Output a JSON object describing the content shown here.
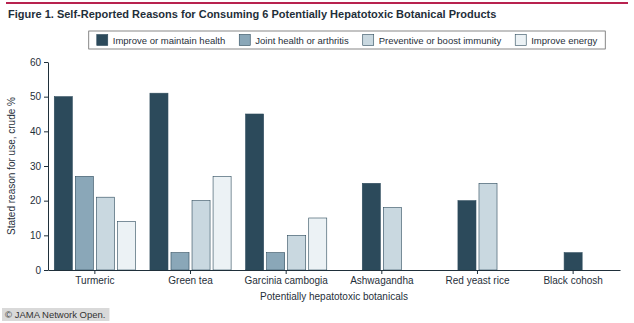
{
  "chart_data": {
    "type": "bar",
    "title": "Figure 1. Self-Reported Reasons for Consuming 6 Potentially Hepatotoxic Botanical Products",
    "x_label": "Potentially hepatotoxic botanicals",
    "y_label": "Stated reason for use, crude %",
    "categories": [
      "Turmeric",
      "Green tea",
      "Garcinia cambogia",
      "Ashwagandha",
      "Red yeast rice",
      "Black cohosh"
    ],
    "series": [
      {
        "name": "Improve or maintain health",
        "color": "#2c4a5b",
        "values": [
          50,
          51,
          45,
          25,
          20,
          5
        ]
      },
      {
        "name": "Joint health or arthritis",
        "color": "#8aa7b8",
        "values": [
          27,
          5,
          5,
          null,
          null,
          null
        ]
      },
      {
        "name": "Preventive or boost immunity",
        "color": "#c9d8e0",
        "values": [
          21,
          20,
          10,
          18,
          25,
          null
        ]
      },
      {
        "name": "Improve energy",
        "color": "#ecf2f5",
        "values": [
          14,
          27,
          15,
          null,
          null,
          null
        ]
      }
    ],
    "ylim": [
      0,
      60
    ],
    "yticks": [
      0,
      10,
      20,
      30,
      40,
      50,
      60
    ],
    "grid": false,
    "legend": "top",
    "annotations": [
      "© JAMA Network Open."
    ]
  }
}
